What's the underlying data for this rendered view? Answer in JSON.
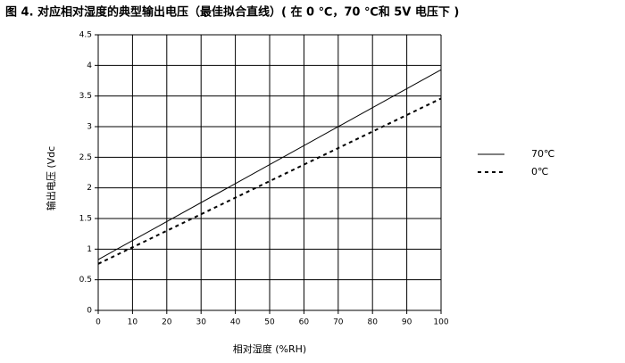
{
  "chart_data": {
    "type": "line",
    "title": "图 4. 对应相对湿度的典型输出电压（最佳拟合直线）( 在 0 ℃，70 ℃和 5V 电压下 )",
    "x_label": "相对湿度 (%RH)",
    "y_label": "输出电压 (Vdc",
    "x": [
      0,
      100
    ],
    "series": [
      {
        "name": "70℃",
        "color": "#000000",
        "linestyle": "solid",
        "values": [
          0.83,
          3.93
        ]
      },
      {
        "name": "0℃",
        "color": "#000000",
        "linestyle": "dashed",
        "values": [
          0.76,
          3.46
        ]
      }
    ],
    "xlim": [
      0,
      100
    ],
    "xticks": [
      0,
      10,
      20,
      30,
      40,
      50,
      60,
      70,
      80,
      90,
      100
    ],
    "ylim": [
      0,
      4.5
    ],
    "yticks": [
      0,
      0.5,
      1,
      1.5,
      2,
      2.5,
      3,
      3.5,
      4,
      4.5
    ],
    "grid": true,
    "legend": "right"
  }
}
